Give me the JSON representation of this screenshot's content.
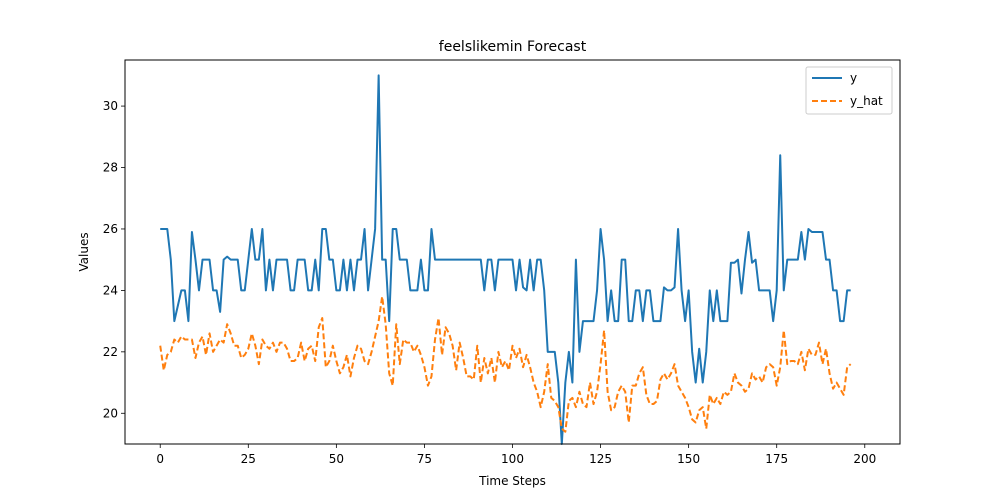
{
  "chart_data": {
    "type": "line",
    "title": "feelslikemin Forecast",
    "xlabel": "Time Steps",
    "ylabel": "Values",
    "xlim": [
      -10,
      210
    ],
    "ylim": [
      19,
      31.5
    ],
    "xticks": [
      0,
      25,
      50,
      75,
      100,
      125,
      150,
      175,
      200
    ],
    "yticks": [
      20,
      22,
      24,
      26,
      28,
      30
    ],
    "legend_position": "top-right",
    "grid": false,
    "series": [
      {
        "name": "y",
        "color": "#1f77b4",
        "style": "solid",
        "values": [
          26,
          26,
          26,
          25,
          23,
          23.5,
          24,
          24,
          23,
          25.9,
          25,
          24,
          25,
          25,
          25,
          24,
          24,
          23.3,
          25,
          25.1,
          25,
          25,
          25,
          24,
          24,
          25,
          26,
          25,
          25,
          26,
          24,
          25,
          24,
          25,
          25,
          25,
          25,
          24,
          24,
          25,
          25,
          25,
          24,
          24,
          25,
          24,
          26,
          26,
          25,
          25,
          24,
          24,
          25,
          24,
          25,
          24,
          25,
          25,
          26,
          24,
          25,
          26,
          31,
          25,
          25,
          23,
          26,
          26,
          25,
          25,
          25,
          24,
          24,
          24,
          25,
          24,
          24,
          26,
          25,
          25,
          25,
          25,
          25,
          25,
          25,
          25,
          25,
          25,
          25,
          25,
          25,
          25,
          24,
          25,
          25,
          24,
          25,
          25,
          25,
          25,
          25,
          24,
          25,
          24.1,
          24,
          25,
          24,
          25,
          25,
          24,
          22,
          22,
          22,
          21,
          19,
          21,
          22,
          21,
          25,
          22,
          23,
          23,
          23,
          23,
          24,
          26,
          25,
          23,
          24,
          23,
          23,
          25,
          25,
          23,
          23,
          24,
          24,
          23,
          24,
          24,
          23,
          23,
          23,
          24.1,
          24,
          24,
          24.1,
          26,
          24,
          23,
          24,
          22,
          21,
          22.1,
          21,
          22,
          24,
          23,
          24,
          23,
          23,
          23,
          24.9,
          24.9,
          25,
          23.9,
          25,
          25.9,
          24.9,
          25,
          24,
          24,
          24,
          24,
          23,
          24,
          28.4,
          24,
          25,
          25,
          25,
          25,
          25.9,
          25,
          26,
          25.9,
          25.9,
          25.9,
          25.9,
          25,
          25,
          24,
          24,
          23,
          23,
          24,
          24
        ]
      },
      {
        "name": "y_hat",
        "color": "#ff7f0e",
        "style": "dashed",
        "values": [
          22.2,
          21.4,
          21.9,
          22.0,
          22.4,
          22.3,
          22.5,
          22.4,
          22.4,
          22.4,
          21.8,
          22.3,
          22.5,
          21.9,
          22.6,
          22.0,
          22.2,
          22.4,
          22.3,
          22.9,
          22.6,
          22.2,
          22.2,
          21.8,
          21.9,
          22.1,
          22.6,
          22.2,
          21.6,
          22.4,
          22.2,
          22.1,
          22.3,
          22.0,
          22.3,
          22.3,
          22.1,
          21.7,
          21.7,
          21.8,
          22.3,
          21.7,
          22.1,
          22.2,
          21.7,
          22.8,
          23.1,
          21.5,
          21.7,
          22.2,
          21.7,
          21.3,
          21.5,
          21.9,
          21.2,
          21.8,
          22.2,
          22.1,
          21.7,
          21.6,
          22.0,
          22.5,
          23.0,
          23.8,
          22.9,
          21.3,
          20.9,
          22.9,
          21.6,
          22.4,
          22.3,
          22.3,
          22.0,
          22.2,
          21.9,
          21.5,
          20.9,
          21.2,
          22.4,
          23.1,
          21.9,
          22.8,
          22.6,
          22.2,
          21.4,
          22.3,
          21.8,
          21.2,
          21.2,
          21.1,
          22.2,
          21.0,
          21.8,
          21.3,
          21.8,
          21.0,
          22.0,
          21.5,
          21.7,
          21.4,
          22.2,
          21.8,
          22.1,
          21.5,
          21.9,
          21.5,
          21.0,
          20.7,
          20.2,
          20.7,
          21.6,
          20.5,
          20.4,
          20.2,
          19.5,
          19.4,
          20.4,
          20.5,
          20.2,
          20.7,
          20.3,
          20.2,
          21.0,
          20.3,
          20.7,
          21.6,
          22.7,
          20.7,
          20.1,
          20.2,
          20.7,
          20.9,
          20.7,
          19.7,
          20.9,
          20.9,
          21.3,
          21.5,
          20.6,
          20.3,
          20.3,
          20.4,
          21.1,
          21.3,
          21.1,
          21.3,
          21.6,
          20.9,
          20.7,
          20.5,
          20.2,
          19.8,
          19.7,
          20.1,
          20.2,
          19.5,
          20.6,
          20.3,
          20.5,
          20.3,
          20.7,
          20.6,
          20.7,
          21.3,
          21.0,
          20.9,
          20.7,
          20.8,
          21.3,
          21.1,
          21.2,
          21.0,
          21.5,
          21.6,
          21.5,
          20.9,
          21.5,
          22.7,
          21.6,
          21.7,
          21.7,
          21.6,
          22.0,
          21.4,
          22.1,
          21.9,
          21.9,
          22.3,
          21.6,
          22.1,
          21.3,
          20.8,
          21.0,
          20.8,
          20.6,
          21.5,
          21.6
        ]
      }
    ]
  }
}
